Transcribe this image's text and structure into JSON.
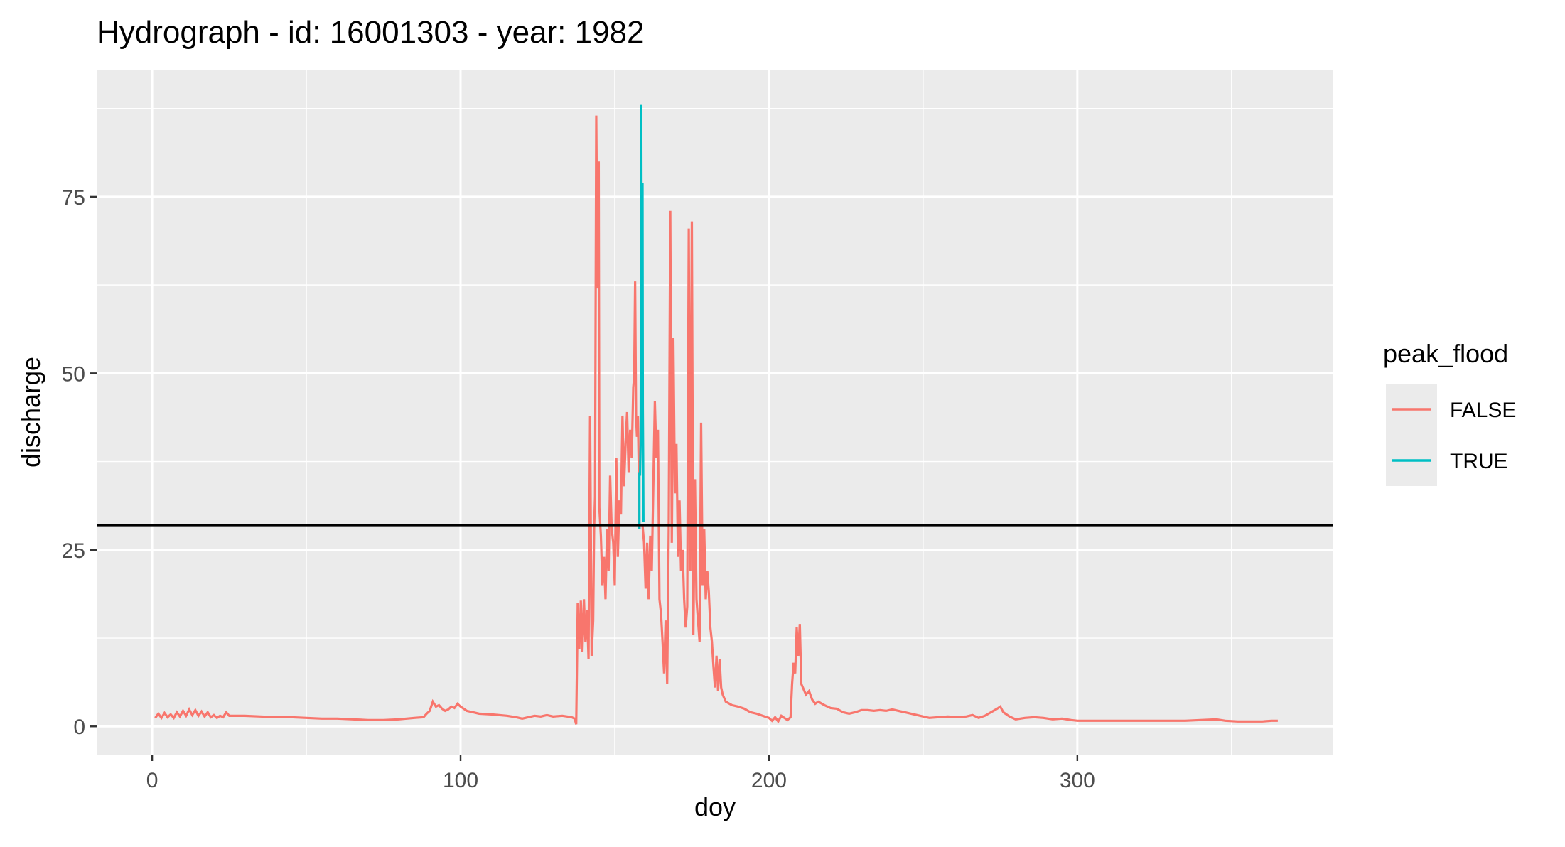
{
  "chart_data": {
    "type": "line",
    "title": "Hydrograph - id: 16001303 - year: 1982",
    "xlabel": "doy",
    "ylabel": "discharge",
    "xlim": [
      -18,
      383
    ],
    "ylim": [
      -4,
      93
    ],
    "x_ticks": [
      0,
      100,
      200,
      300
    ],
    "y_ticks": [
      0,
      25,
      50,
      75
    ],
    "x_tick_labels": [
      "0",
      "100",
      "200",
      "300"
    ],
    "y_tick_labels": [
      "0",
      "25",
      "50",
      "75"
    ],
    "grid": true,
    "legend": {
      "title": "peak_flood",
      "position": "right",
      "entries": [
        {
          "label": "FALSE",
          "color": "#F8766D"
        },
        {
          "label": "TRUE",
          "color": "#00BFC4"
        }
      ]
    },
    "threshold": 28.5,
    "series": [
      {
        "name": "FALSE",
        "color": "#F8766D",
        "segments": [
          [
            [
              1,
              1.2
            ],
            [
              2,
              1.8
            ],
            [
              3,
              1.2
            ],
            [
              4,
              1.9
            ],
            [
              5,
              1.3
            ],
            [
              6,
              1.7
            ],
            [
              7,
              1.2
            ],
            [
              8,
              2.0
            ],
            [
              9,
              1.4
            ],
            [
              10,
              2.2
            ],
            [
              11,
              1.5
            ],
            [
              12,
              2.4
            ],
            [
              13,
              1.6
            ],
            [
              14,
              2.3
            ],
            [
              15,
              1.5
            ],
            [
              16,
              2.1
            ],
            [
              17,
              1.4
            ],
            [
              18,
              2.0
            ],
            [
              19,
              1.3
            ],
            [
              20,
              1.6
            ],
            [
              21,
              1.2
            ],
            [
              22,
              1.5
            ],
            [
              23,
              1.3
            ],
            [
              24,
              2.0
            ],
            [
              25,
              1.5
            ],
            [
              30,
              1.5
            ],
            [
              35,
              1.4
            ],
            [
              40,
              1.3
            ],
            [
              45,
              1.3
            ],
            [
              50,
              1.2
            ],
            [
              55,
              1.1
            ],
            [
              60,
              1.1
            ],
            [
              65,
              1.0
            ],
            [
              70,
              0.9
            ],
            [
              75,
              0.9
            ],
            [
              80,
              1.0
            ],
            [
              85,
              1.2
            ],
            [
              88,
              1.3
            ],
            [
              89,
              1.8
            ],
            [
              90,
              2.2
            ],
            [
              91,
              3.5
            ],
            [
              92,
              2.8
            ],
            [
              93,
              3.0
            ],
            [
              94,
              2.5
            ],
            [
              95,
              2.2
            ],
            [
              96,
              2.4
            ],
            [
              97,
              2.8
            ],
            [
              98,
              2.6
            ],
            [
              99,
              3.2
            ],
            [
              100,
              2.8
            ],
            [
              102,
              2.2
            ],
            [
              104,
              2.0
            ],
            [
              106,
              1.8
            ],
            [
              110,
              1.7
            ],
            [
              115,
              1.5
            ],
            [
              118,
              1.3
            ],
            [
              120,
              1.1
            ],
            [
              122,
              1.3
            ],
            [
              124,
              1.5
            ],
            [
              126,
              1.4
            ],
            [
              128,
              1.6
            ],
            [
              130,
              1.4
            ],
            [
              133,
              1.5
            ],
            [
              136,
              1.3
            ],
            [
              137,
              1.1
            ],
            [
              137.5,
              0.3
            ],
            [
              138,
              17.5
            ],
            [
              138.5,
              11.0
            ],
            [
              139,
              17.8
            ],
            [
              139.5,
              10.5
            ],
            [
              140,
              18.0
            ],
            [
              140.5,
              12.0
            ],
            [
              141,
              16.5
            ],
            [
              141.5,
              9.5
            ],
            [
              142,
              44.0
            ],
            [
              142.5,
              10.0
            ],
            [
              143,
              15.0
            ],
            [
              143.3,
              28.0
            ],
            [
              143.6,
              32.5
            ],
            [
              144,
              86.5
            ],
            [
              144.4,
              62.0
            ],
            [
              144.8,
              80.0
            ],
            [
              145,
              31.0
            ],
            [
              145.5,
              27.0
            ],
            [
              146,
              20.0
            ],
            [
              146.5,
              24.0
            ],
            [
              147,
              18.0
            ],
            [
              147.5,
              28.0
            ],
            [
              148,
              22.0
            ],
            [
              148.5,
              35.5
            ],
            [
              149,
              28.0
            ],
            [
              149.5,
              26.0
            ],
            [
              150,
              20.0
            ],
            [
              150.5,
              38.0
            ],
            [
              151,
              24.0
            ],
            [
              151.5,
              32.0
            ],
            [
              152,
              30.0
            ],
            [
              152.5,
              44.0
            ],
            [
              153,
              34.0
            ],
            [
              153.5,
              40.0
            ],
            [
              154,
              44.5
            ],
            [
              154.5,
              36.0
            ],
            [
              155,
              42.0
            ],
            [
              155.5,
              38.0
            ],
            [
              156,
              48.0
            ],
            [
              156.3,
              49.5
            ],
            [
              156.6,
              63.0
            ],
            [
              156.9,
              44.0
            ],
            [
              157.2,
              41.0
            ],
            [
              157.5,
              44.0
            ],
            [
              157.8,
              36.0
            ],
            [
              158,
              28.0
            ]
          ],
          [
            [
              159,
              28.5
            ],
            [
              159.5,
              26.0
            ],
            [
              160,
              19.5
            ],
            [
              160.5,
              26.0
            ],
            [
              161,
              18.0
            ],
            [
              161.5,
              27.0
            ],
            [
              162,
              22.0
            ],
            [
              162.5,
              34.0
            ],
            [
              163,
              46.0
            ],
            [
              163.5,
              38.0
            ],
            [
              164,
              42.0
            ],
            [
              164.5,
              18.0
            ],
            [
              165,
              16.0
            ],
            [
              165.5,
              12.0
            ],
            [
              166,
              7.5
            ],
            [
              166.5,
              15.0
            ],
            [
              167,
              6.0
            ],
            [
              167.5,
              28.0
            ],
            [
              168,
              73.0
            ],
            [
              168.5,
              26.0
            ],
            [
              169,
              55.0
            ],
            [
              169.5,
              33.0
            ],
            [
              170,
              40.0
            ],
            [
              170.5,
              24.0
            ],
            [
              171,
              32.0
            ],
            [
              171.5,
              22.0
            ],
            [
              172,
              25.0
            ],
            [
              172.5,
              18.0
            ],
            [
              173,
              14.0
            ],
            [
              173.5,
              17.0
            ],
            [
              174,
              70.5
            ],
            [
              174.5,
              22.0
            ],
            [
              175,
              71.5
            ],
            [
              175.5,
              13.0
            ],
            [
              176,
              35.0
            ],
            [
              176.5,
              18.0
            ],
            [
              177,
              15.0
            ],
            [
              177.5,
              12.0
            ],
            [
              178,
              43.0
            ],
            [
              178.5,
              20.0
            ],
            [
              179,
              28.0
            ],
            [
              179.5,
              18.0
            ],
            [
              180,
              22.0
            ],
            [
              180.5,
              19.0
            ],
            [
              181,
              14.0
            ],
            [
              181.5,
              12.0
            ],
            [
              182,
              8.5
            ],
            [
              182.5,
              5.5
            ],
            [
              183,
              10.0
            ],
            [
              183.5,
              5.0
            ],
            [
              184,
              9.5
            ],
            [
              184.5,
              5.5
            ],
            [
              185,
              4.5
            ],
            [
              186,
              3.5
            ],
            [
              188,
              3.0
            ],
            [
              190,
              2.8
            ],
            [
              192,
              2.5
            ],
            [
              194,
              2.0
            ],
            [
              196,
              1.8
            ],
            [
              198,
              1.5
            ],
            [
              200,
              1.2
            ],
            [
              201,
              0.8
            ],
            [
              202,
              1.3
            ],
            [
              203,
              0.7
            ],
            [
              204,
              1.5
            ],
            [
              205,
              1.2
            ],
            [
              206,
              0.9
            ],
            [
              207,
              1.3
            ],
            [
              207.5,
              6.0
            ],
            [
              208,
              9.0
            ],
            [
              208.5,
              7.5
            ],
            [
              209,
              14.0
            ],
            [
              209.5,
              10.0
            ],
            [
              210,
              14.5
            ],
            [
              210.5,
              6.0
            ],
            [
              211,
              5.5
            ],
            [
              212,
              4.5
            ],
            [
              213,
              5.0
            ],
            [
              214,
              3.8
            ],
            [
              215,
              3.2
            ],
            [
              216,
              3.5
            ],
            [
              218,
              3.0
            ],
            [
              220,
              2.6
            ],
            [
              222,
              2.5
            ],
            [
              224,
              2.0
            ],
            [
              226,
              1.8
            ],
            [
              228,
              2.0
            ],
            [
              230,
              2.3
            ],
            [
              232,
              2.3
            ],
            [
              234,
              2.2
            ],
            [
              236,
              2.3
            ],
            [
              238,
              2.2
            ],
            [
              240,
              2.4
            ],
            [
              242,
              2.2
            ],
            [
              244,
              2.0
            ],
            [
              246,
              1.8
            ],
            [
              248,
              1.6
            ],
            [
              250,
              1.4
            ],
            [
              252,
              1.2
            ],
            [
              255,
              1.3
            ],
            [
              258,
              1.4
            ],
            [
              261,
              1.3
            ],
            [
              264,
              1.4
            ],
            [
              266,
              1.6
            ],
            [
              268,
              1.2
            ],
            [
              270,
              1.5
            ],
            [
              272,
              2.0
            ],
            [
              274,
              2.5
            ],
            [
              275,
              2.8
            ],
            [
              276,
              2.0
            ],
            [
              278,
              1.4
            ],
            [
              280,
              1.0
            ],
            [
              283,
              1.2
            ],
            [
              286,
              1.3
            ],
            [
              289,
              1.2
            ],
            [
              292,
              1.0
            ],
            [
              295,
              1.1
            ],
            [
              298,
              0.9
            ],
            [
              300,
              0.8
            ],
            [
              305,
              0.8
            ],
            [
              310,
              0.8
            ],
            [
              315,
              0.8
            ],
            [
              320,
              0.8
            ],
            [
              325,
              0.8
            ],
            [
              330,
              0.8
            ],
            [
              335,
              0.8
            ],
            [
              340,
              0.9
            ],
            [
              345,
              1.0
            ],
            [
              348,
              0.8
            ],
            [
              352,
              0.7
            ],
            [
              356,
              0.7
            ],
            [
              360,
              0.7
            ],
            [
              363,
              0.8
            ],
            [
              365,
              0.8
            ]
          ]
        ]
      },
      {
        "name": "TRUE",
        "color": "#00BFC4",
        "segments": [
          [
            [
              158,
              28.0
            ],
            [
              158,
              36.0
            ],
            [
              158.2,
              35.5
            ],
            [
              158.4,
              40.0
            ],
            [
              158.6,
              88.0
            ],
            [
              158.8,
              50.0
            ],
            [
              159,
              77.0
            ],
            [
              159.1,
              45.0
            ],
            [
              159.2,
              38.0
            ],
            [
              159.3,
              29.0
            ]
          ]
        ]
      }
    ]
  }
}
